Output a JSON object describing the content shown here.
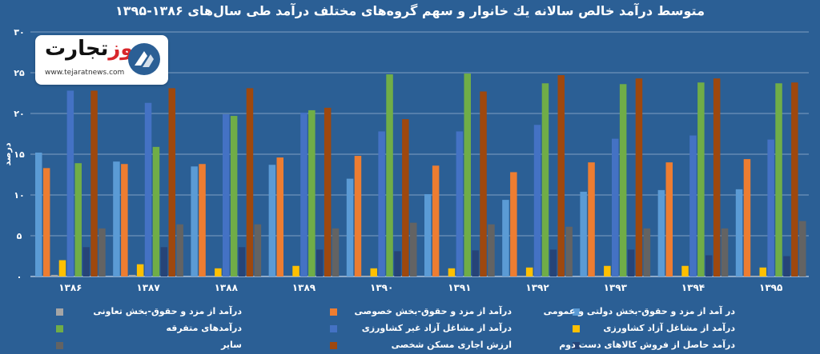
{
  "title": "متوسط درآمد خالص سالانه یك خانوار و سهم گروه‌های مختلف درآمد طی سال‌های ۱۳۸۶-۱۳۹۵",
  "logo": {
    "name_black": "تجارت",
    "name_red": "نیوز",
    "url": "www.tejaratnews.com"
  },
  "colors": {
    "background": "#2b5f95",
    "gridline": "#9db5d2",
    "text": "#ffffff",
    "logo_red": "#d8262b"
  },
  "chart_data": {
    "type": "bar",
    "title": "متوسط درآمد خالص سالانه یك خانوار و سهم گروه‌های مختلف درآمد طی سال‌های ۱۳۸۶-۱۳۹۵",
    "ylabel": "درصد",
    "xlabel": "",
    "ylim": [
      0,
      30
    ],
    "yticks": [
      0,
      5,
      10,
      15,
      20,
      25,
      30
    ],
    "ytick_labels": [
      "۰",
      "۵",
      "۱۰",
      "۱۵",
      "۲۰",
      "۲۵",
      "۳۰"
    ],
    "grid": true,
    "legend_position": "bottom",
    "categories": [
      "۱۳۸۶",
      "۱۳۸۷",
      "۱۳۸۸",
      "۱۳۸۹",
      "۱۳۹۰",
      "۱۳۹۱",
      "۱۳۹۲",
      "۱۳۹۳",
      "۱۳۹۴",
      "۱۳۹۵"
    ],
    "series": [
      {
        "name": "در آمد از مزد و حقوق-بخش دولتی و عمومی",
        "color": "#5b9bd5",
        "values": [
          15.2,
          14.1,
          13.5,
          13.7,
          12.0,
          10.1,
          9.4,
          10.4,
          10.6,
          10.7
        ]
      },
      {
        "name": "درآمد از مزد و حقوق-بخش خصوصی",
        "color": "#ed7d31",
        "values": [
          13.3,
          13.8,
          13.8,
          14.6,
          14.8,
          13.6,
          12.8,
          14.0,
          14.0,
          14.4
        ]
      },
      {
        "name": "درآمد از مزد و حقوق-بخش تعاونی",
        "color": "#a5a5a5",
        "values": [
          0.2,
          0.2,
          0.1,
          0.1,
          0.1,
          0.1,
          0.1,
          0.1,
          0.1,
          0.1
        ]
      },
      {
        "name": "درآمد از مشاغل آزاد کشاورزی",
        "color": "#ffc000",
        "values": [
          2.0,
          1.5,
          1.0,
          1.3,
          1.0,
          1.0,
          1.1,
          1.3,
          1.3,
          1.1
        ]
      },
      {
        "name": "درآمد از مشاغل آزاد غیر کشاورزی",
        "color": "#4472c4",
        "values": [
          22.8,
          21.3,
          19.9,
          20.1,
          17.8,
          17.8,
          18.6,
          16.9,
          17.3,
          16.8
        ]
      },
      {
        "name": "درآمدهای متفرقه",
        "color": "#70ad47",
        "values": [
          13.9,
          15.9,
          19.7,
          20.4,
          24.8,
          24.9,
          23.7,
          23.6,
          23.8,
          23.7
        ]
      },
      {
        "name": "درآمد حاصل از فروش کالاهای دست دوم",
        "color": "#264478",
        "values": [
          3.6,
          3.6,
          3.6,
          3.3,
          3.1,
          3.2,
          3.3,
          3.3,
          2.6,
          2.5
        ]
      },
      {
        "name": "ارزش اجاری مسکن شخصی",
        "color": "#9e480e",
        "values": [
          22.8,
          23.1,
          23.1,
          20.7,
          19.3,
          22.7,
          24.7,
          24.3,
          24.3,
          23.8
        ]
      },
      {
        "name": "سایر",
        "color": "#636363",
        "values": [
          5.9,
          6.4,
          6.4,
          5.9,
          6.6,
          6.4,
          6.1,
          5.9,
          5.9,
          6.8
        ]
      }
    ]
  }
}
